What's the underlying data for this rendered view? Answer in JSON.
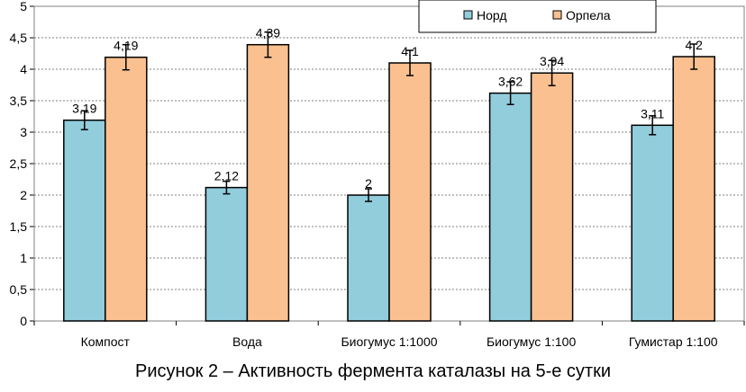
{
  "caption": "Рисунок 2 – Активность фермента каталазы на 5-е сутки",
  "chart_data": {
    "type": "bar",
    "title": "",
    "xlabel": "",
    "ylabel": "",
    "categories": [
      "Компост",
      "Вода",
      "Биогумус 1:1000",
      "Биогумус 1:100",
      "Гумистар 1:100"
    ],
    "series": [
      {
        "name": "Норд",
        "color": "#92CDDC",
        "values": [
          3.19,
          2.12,
          2.0,
          3.62,
          3.11
        ],
        "labels": [
          "3,19",
          "2,12",
          "2",
          "3,62",
          "3,11"
        ],
        "errors": [
          0.15,
          0.1,
          0.1,
          0.18,
          0.15
        ]
      },
      {
        "name": "Орпела",
        "color": "#FAC090",
        "values": [
          4.19,
          4.39,
          4.1,
          3.94,
          4.2
        ],
        "labels": [
          "4,19",
          "4,39",
          "4,1",
          "3,94",
          "4,2"
        ],
        "errors": [
          0.2,
          0.2,
          0.2,
          0.2,
          0.2
        ]
      }
    ],
    "ylim": [
      0,
      5
    ],
    "yticks": [
      "0",
      "0,5",
      "1",
      "1,5",
      "2",
      "2,5",
      "3",
      "3,5",
      "4",
      "4,5",
      "5"
    ],
    "grid": true,
    "legend_position": "top-right"
  }
}
